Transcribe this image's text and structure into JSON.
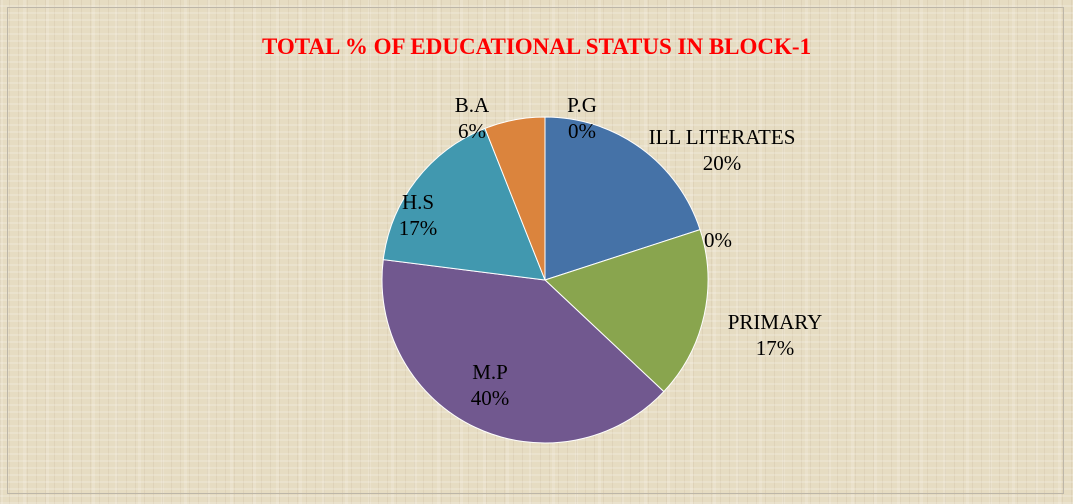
{
  "chart_data": {
    "type": "pie",
    "title": "TOTAL % OF EDUCATIONAL STATUS IN BLOCK-1",
    "categories": [
      "ILL LITERATES",
      null,
      "PRIMARY",
      "M.P",
      "H.S",
      "B.A",
      "P.G"
    ],
    "values": [
      20,
      0,
      17,
      40,
      17,
      6,
      0
    ],
    "value_labels": [
      "20%",
      "0%",
      "17%",
      "40%",
      "17%",
      "6%",
      "0%"
    ],
    "colors": [
      "#4572a7",
      "#aa4643",
      "#89a54e",
      "#71588f",
      "#4198af",
      "#db843d",
      "#93a9cf"
    ]
  }
}
